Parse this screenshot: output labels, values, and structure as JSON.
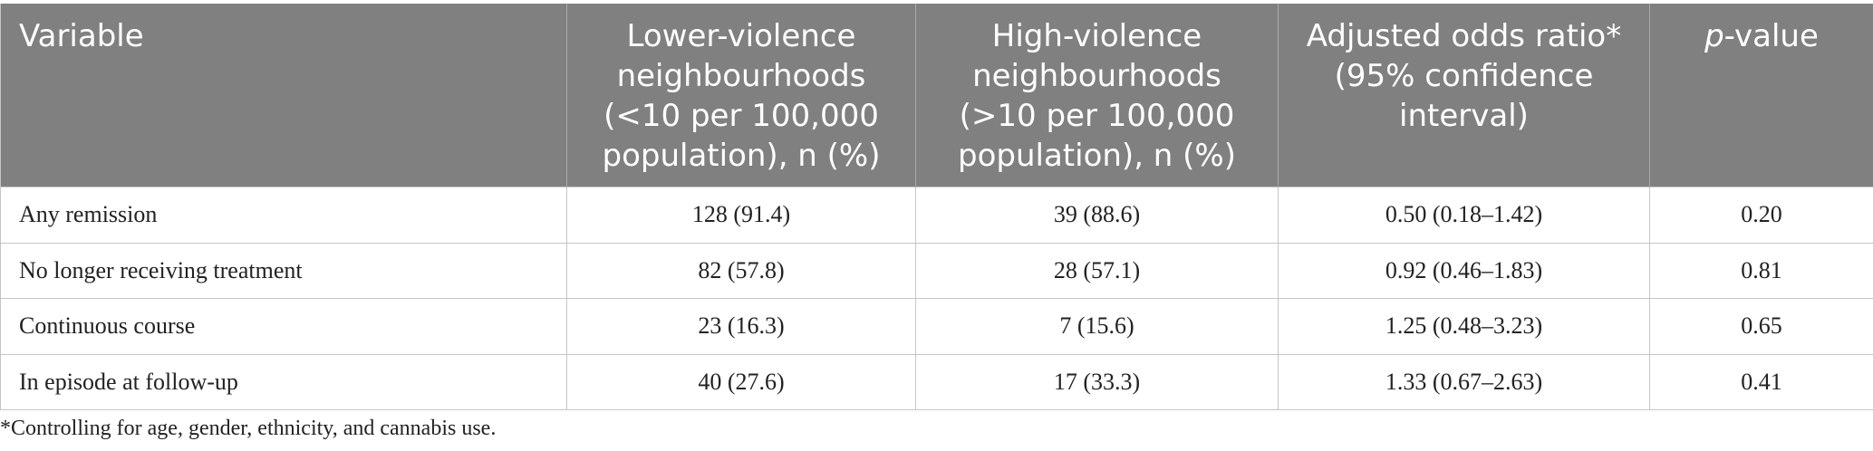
{
  "table": {
    "headers": [
      {
        "text": "Variable",
        "align": "left"
      },
      {
        "text": "Lower-violence neighbourhoods (<10 per 100,000 population), n (%)",
        "align": "center"
      },
      {
        "text": "High-violence neighbourhoods (>10 per 100,000 population), n (%)",
        "align": "center"
      },
      {
        "text": "Adjusted odds ratio* (95% confidence interval)",
        "align": "center"
      },
      {
        "text_italic": "p",
        "text_rest": "-value",
        "align": "center"
      }
    ],
    "rows": [
      [
        "Any remission",
        "128 (91.4)",
        "39 (88.6)",
        "0.50 (0.18–1.42)",
        "0.20"
      ],
      [
        "No longer receiving treatment",
        "82 (57.8)",
        "28 (57.1)",
        "0.92 (0.46–1.83)",
        "0.81"
      ],
      [
        "Continuous course",
        "23 (16.3)",
        "7 (15.6)",
        "1.25 (0.48–3.23)",
        "0.65"
      ],
      [
        "In episode at follow-up",
        "40 (27.6)",
        "17 (33.3)",
        "1.33 (0.67–2.63)",
        "0.41"
      ]
    ]
  },
  "footnote": "*Controlling for age, gender, ethnicity, and cannabis use.",
  "colors": {
    "header_bg": "#7f807f",
    "header_text": "#ffffff",
    "grid": "#c6c6c6"
  }
}
